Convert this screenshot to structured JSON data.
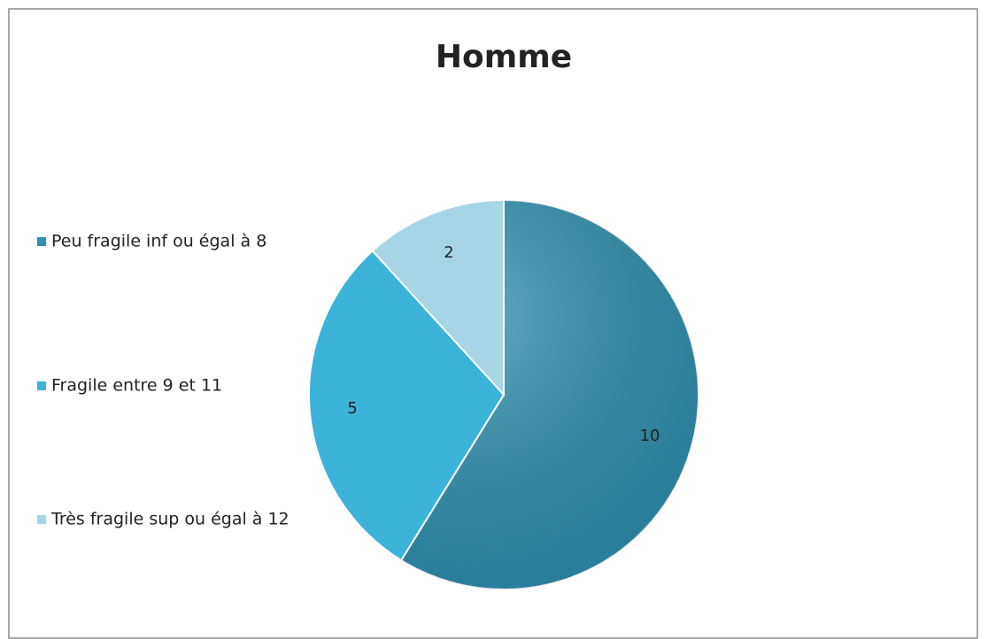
{
  "chart_data": {
    "type": "pie",
    "title": "Homme",
    "categories": [
      "Peu fragile inf ou égal à 8",
      "Fragile entre 9 et 11",
      "Très fragile sup ou égal à 12"
    ],
    "values": [
      10,
      5,
      2
    ],
    "colors": [
      "#2f8fb0",
      "#3cb3d8",
      "#a6d6e6"
    ],
    "legend": "left"
  }
}
